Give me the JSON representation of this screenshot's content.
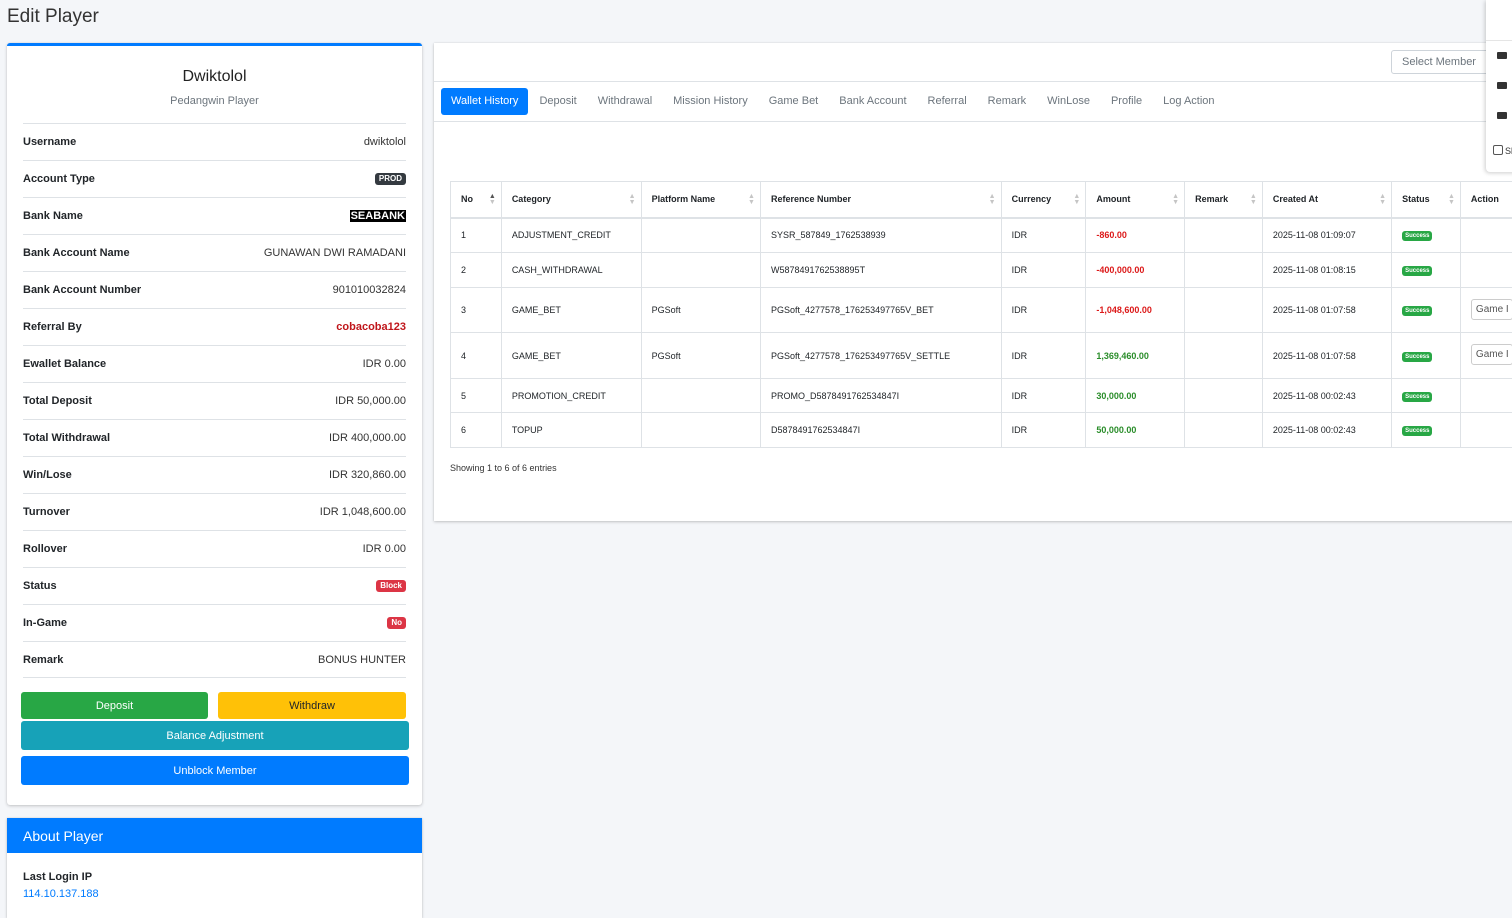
{
  "page": {
    "title": "Edit Player"
  },
  "profile": {
    "name": "Dwiktolol",
    "subtitle": "Pedangwin Player",
    "rows": [
      {
        "label": "Username",
        "value": "dwiktolol"
      },
      {
        "label": "Account Type",
        "value": "PROD"
      },
      {
        "label": "Bank Name",
        "value": "SEABANK"
      },
      {
        "label": "Bank Account Name",
        "value": "GUNAWAN DWI RAMADANI"
      },
      {
        "label": "Bank Account Number",
        "value": "901010032824"
      },
      {
        "label": "Referral By",
        "value": "cobacoba123"
      },
      {
        "label": "Ewallet Balance",
        "value": "IDR 0.00"
      },
      {
        "label": "Total Deposit",
        "value": "IDR 50,000.00"
      },
      {
        "label": "Total Withdrawal",
        "value": "IDR 400,000.00"
      },
      {
        "label": "Win/Lose",
        "value": "IDR 320,860.00"
      },
      {
        "label": "Turnover",
        "value": "IDR 1,048,600.00"
      },
      {
        "label": "Rollover",
        "value": "IDR 0.00"
      },
      {
        "label": "Status",
        "value": "Block"
      },
      {
        "label": "In-Game",
        "value": "No"
      },
      {
        "label": "Remark",
        "value": "BONUS HUNTER"
      }
    ],
    "buttons": {
      "deposit": "Deposit",
      "withdraw": "Withdraw",
      "adjust": "Balance Adjustment",
      "unblock": "Unblock Member"
    }
  },
  "about": {
    "title": "About Player",
    "last_login_label": "Last Login IP",
    "last_login_value": "114.10.137.188"
  },
  "member_select": {
    "placeholder": "Select Member"
  },
  "tabs": [
    "Wallet History",
    "Deposit",
    "Withdrawal",
    "Mission History",
    "Game Bet",
    "Bank Account",
    "Referral",
    "Remark",
    "WinLose",
    "Profile",
    "Log Action"
  ],
  "table": {
    "headers": [
      "No",
      "Category",
      "Platform Name",
      "Reference Number",
      "Currency",
      "Amount",
      "Remark",
      "Created At",
      "Status",
      "Action"
    ],
    "rows": [
      {
        "no": "1",
        "category": "ADJUSTMENT_CREDIT",
        "platform": "",
        "reference": "SYSR_587849_1762538939",
        "currency": "IDR",
        "amount": "-860.00",
        "remark": "",
        "created": "2025-11-08 01:09:07",
        "status": "Success",
        "action": ""
      },
      {
        "no": "2",
        "category": "CASH_WITHDRAWAL",
        "platform": "",
        "reference": "W5878491762538895T",
        "currency": "IDR",
        "amount": "-400,000.00",
        "remark": "",
        "created": "2025-11-08 01:08:15",
        "status": "Success",
        "action": ""
      },
      {
        "no": "3",
        "category": "GAME_BET",
        "platform": "PGSoft",
        "reference": "PGSoft_4277578_176253497765V_BET",
        "currency": "IDR",
        "amount": "-1,048,600.00",
        "remark": "",
        "created": "2025-11-08 01:07:58",
        "status": "Success",
        "action": "Game I"
      },
      {
        "no": "4",
        "category": "GAME_BET",
        "platform": "PGSoft",
        "reference": "PGSoft_4277578_176253497765V_SETTLE",
        "currency": "IDR",
        "amount": "1,369,460.00",
        "remark": "",
        "created": "2025-11-08 01:07:58",
        "status": "Success",
        "action": "Game I"
      },
      {
        "no": "5",
        "category": "PROMOTION_CREDIT",
        "platform": "",
        "reference": "PROMO_D5878491762534847I",
        "currency": "IDR",
        "amount": "30,000.00",
        "remark": "",
        "created": "2025-11-08 00:02:43",
        "status": "Success",
        "action": ""
      },
      {
        "no": "6",
        "category": "TOPUP",
        "platform": "",
        "reference": "D5878491762534847I",
        "currency": "IDR",
        "amount": "50,000.00",
        "remark": "",
        "created": "2025-11-08 00:02:43",
        "status": "Success",
        "action": ""
      }
    ],
    "footer": "Showing 1 to 6 of 6 entries"
  },
  "edge_panel": {
    "checkbox_label": "Sl"
  },
  "colors": {
    "primary": "#007bff",
    "success": "#28a745",
    "warning": "#ffc107",
    "info": "#17a2b8",
    "danger": "#dc3545"
  }
}
